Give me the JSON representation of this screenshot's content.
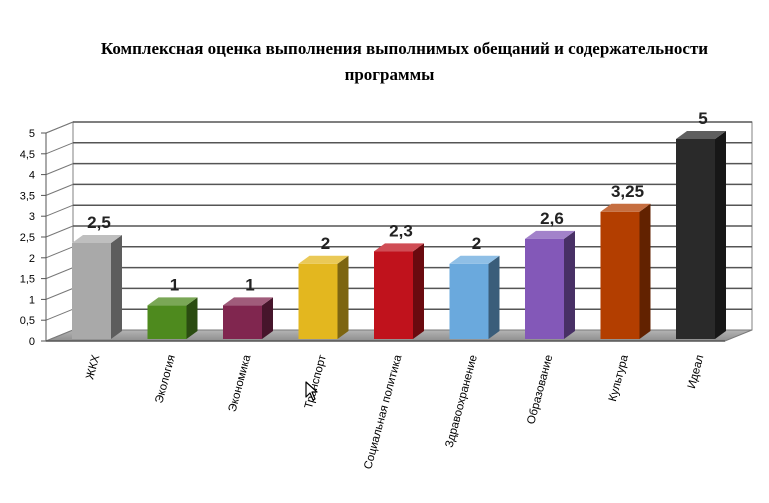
{
  "chart_data": {
    "type": "bar",
    "title_line1": "Комплексная оценка выполнения выполнимых обещаний и содержательности",
    "title_line2": "программы",
    "categories": [
      "ЖКХ",
      "Экология",
      "Экономика",
      "Транспорт",
      "Социальная политика",
      "Здравоохранение",
      "Образование",
      "Культура",
      "Идеал"
    ],
    "values": [
      2.5,
      1,
      1,
      2,
      2.3,
      2,
      2.6,
      3.25,
      5
    ],
    "value_labels": [
      "2,5",
      "1",
      "1",
      "2",
      "2,3",
      "2",
      "2,6",
      "3,25",
      "5"
    ],
    "colors": [
      "#a9a9a9",
      "#4e8a1e",
      "#80264f",
      "#e3b71f",
      "#c0121c",
      "#6aa9dd",
      "#8358b8",
      "#b33e00",
      "#2a2a2a"
    ],
    "ytick_labels": [
      "0",
      "0,5",
      "1",
      "1,5",
      "2",
      "2,5",
      "3",
      "3,5",
      "4",
      "4,5",
      "5"
    ],
    "ylim": [
      0,
      5
    ],
    "grid": true,
    "legend": "none"
  }
}
